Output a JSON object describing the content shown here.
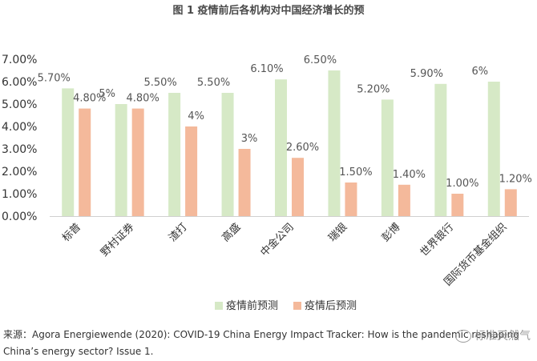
{
  "chart_data": {
    "type": "bar",
    "title": "图 1 疫情前后各机构对中国经济增长的预",
    "categories": [
      "标普",
      "野村证券",
      "渣打",
      "高盛",
      "中金公司",
      "瑞银",
      "彭博",
      "世界银行",
      "国际货币基金组织"
    ],
    "series": [
      {
        "name": "疫情前预测",
        "color": "#d6e9c6",
        "values": [
          5.7,
          5.0,
          5.5,
          5.5,
          6.1,
          6.5,
          5.2,
          5.9,
          6.0
        ],
        "labels": [
          "5.70%",
          "5%",
          "5.50%",
          "5.50%",
          "6.10%",
          "6.50%",
          "5.20%",
          "5.90%",
          "6%"
        ]
      },
      {
        "name": "疫情后预测",
        "color": "#f4b99b",
        "values": [
          4.8,
          4.8,
          4.0,
          3.0,
          2.6,
          1.5,
          1.4,
          1.0,
          1.2
        ],
        "labels": [
          "4.80%",
          "4.80%",
          "4%",
          "3%",
          "2.60%",
          "1.50%",
          "1.40%",
          "1.00%",
          "1.20%"
        ]
      }
    ],
    "ylim": [
      0,
      7
    ],
    "yticks": [
      "0.00%",
      "1.00%",
      "2.00%",
      "3.00%",
      "4.00%",
      "5.00%",
      "6.00%",
      "7.00%"
    ],
    "xlabel": "",
    "ylabel": "",
    "grid": false,
    "legend_position": "bottom"
  },
  "source": {
    "line1": "来源：Agora Energiewende (2020): COVID-19 China Energy Impact Tracker: How is the pandemic reshaping",
    "line2": "China’s energy sector? Issue 1."
  },
  "watermark": {
    "text": "标准天然气"
  }
}
